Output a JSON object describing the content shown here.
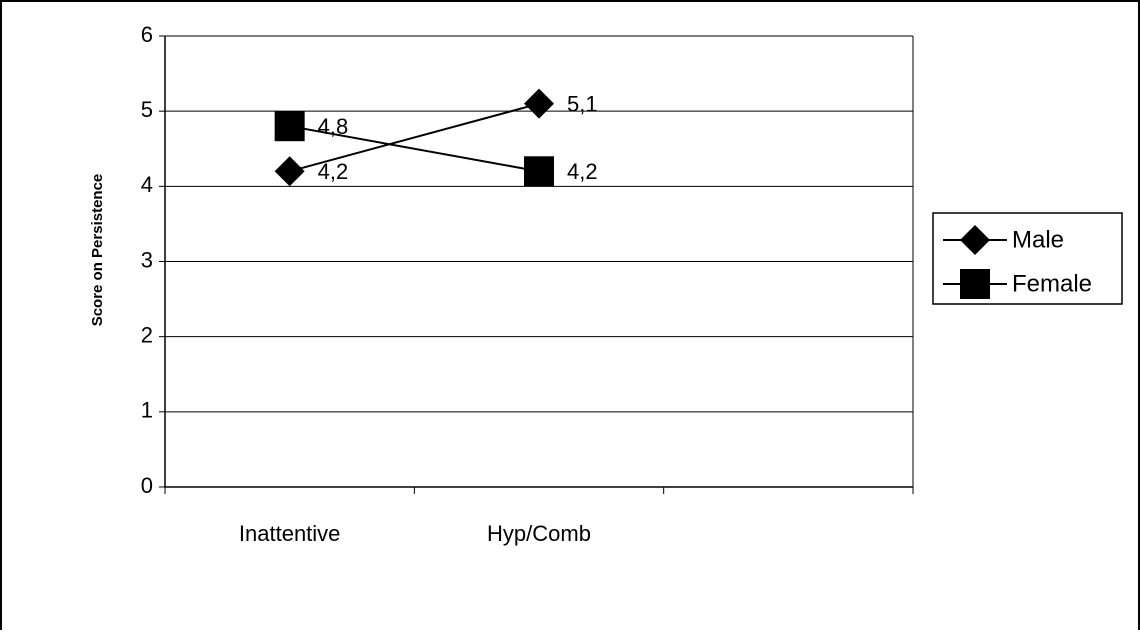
{
  "chart_data": {
    "type": "line",
    "y_label": "Score on Persistence",
    "categories": [
      "Inattentive",
      "Hyp/Comb",
      null
    ],
    "series": [
      {
        "name": "Male",
        "color": "#000000",
        "marker": "diamond",
        "values": [
          4.2,
          5.1,
          null
        ],
        "value_labels": [
          "4,2",
          "5,1",
          null
        ]
      },
      {
        "name": "Female",
        "color": "#000000",
        "marker": "square",
        "values": [
          4.8,
          4.2,
          null
        ],
        "value_labels": [
          "4,8",
          "4,2",
          null
        ]
      }
    ],
    "ylim": [
      0,
      6
    ],
    "yticks": [
      0,
      1,
      2,
      3,
      4,
      5,
      6
    ],
    "grid": true,
    "legend": "right"
  }
}
